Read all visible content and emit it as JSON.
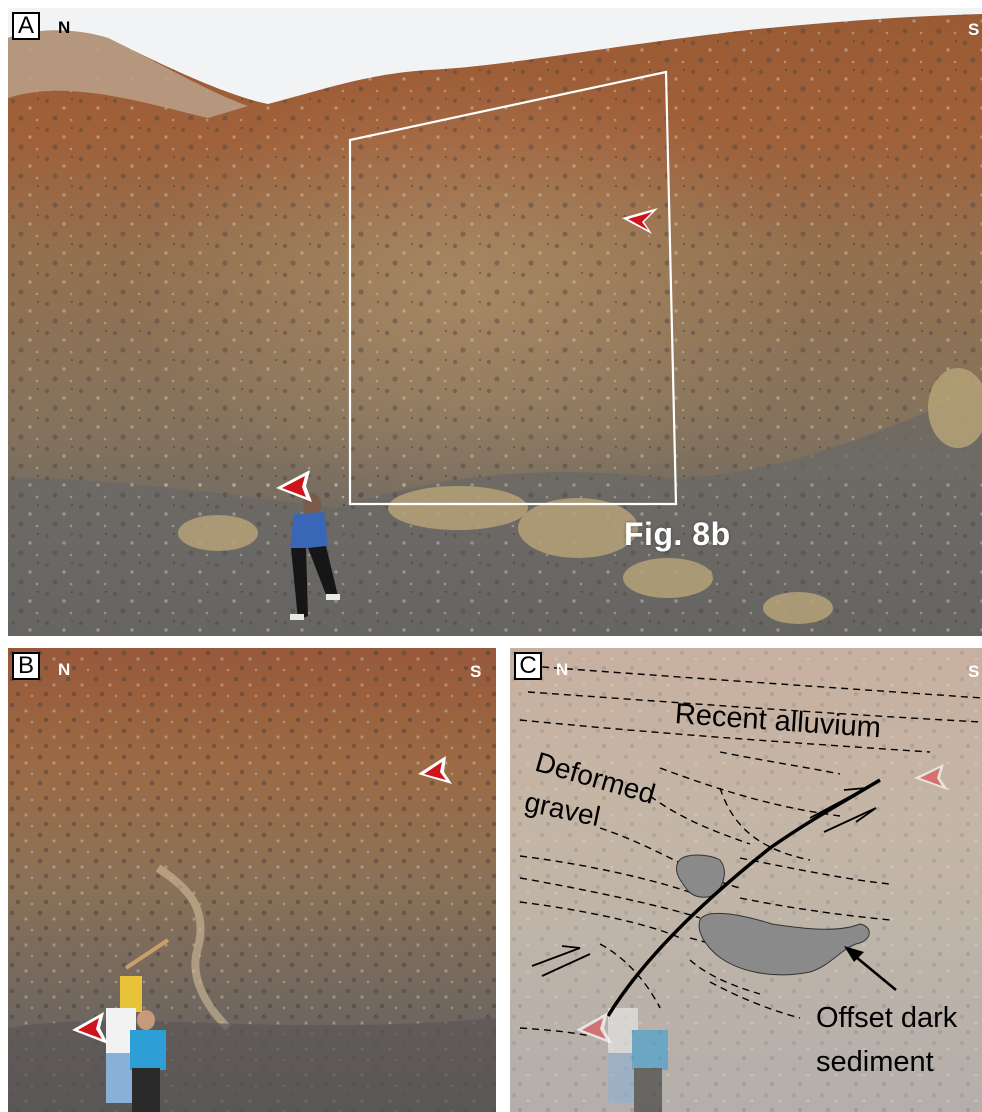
{
  "panels": {
    "a": {
      "letter": "A",
      "north": "N",
      "south": "S",
      "figure_ref": "Fig. 8b"
    },
    "b": {
      "letter": "B",
      "north": "N",
      "south": "S"
    },
    "c": {
      "letter": "C",
      "north": "N",
      "south": "S",
      "labels": {
        "recent_alluvium": "Recent alluvium",
        "deformed_1": "Deformed",
        "deformed_2": "gravel",
        "offset_1": "Offset dark",
        "offset_2": "sediment"
      }
    }
  },
  "colors": {
    "arrowhead": "#d0121b",
    "overlay_box": "#ffffff",
    "fault_line": "#000000",
    "dark_sediment_fill": "#8a8a8a"
  }
}
